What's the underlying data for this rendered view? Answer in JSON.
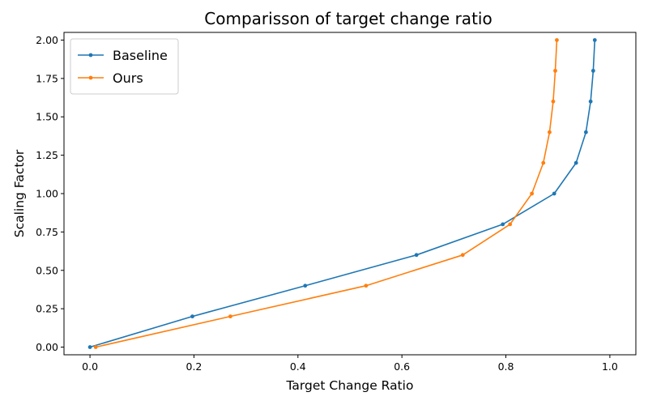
{
  "chart_data": {
    "type": "line",
    "title": "Comparisson of target change ratio",
    "xlabel": "Target Change Ratio",
    "ylabel": "Scaling Factor",
    "xlim": [
      -0.05,
      1.05
    ],
    "ylim": [
      -0.05,
      2.05
    ],
    "xticks": [
      0.0,
      0.2,
      0.4,
      0.6,
      0.8,
      1.0
    ],
    "xtick_labels": [
      "0.0",
      "0.2",
      "0.4",
      "0.6",
      "0.8",
      "1.0"
    ],
    "yticks": [
      0.0,
      0.25,
      0.5,
      0.75,
      1.0,
      1.25,
      1.5,
      1.75,
      2.0
    ],
    "ytick_labels": [
      "0.00",
      "0.25",
      "0.50",
      "0.75",
      "1.00",
      "1.25",
      "1.50",
      "1.75",
      "2.00"
    ],
    "grid": false,
    "legend_position": "top-left",
    "series": [
      {
        "name": "Baseline",
        "color": "#1f77b4",
        "marker": "circle",
        "points": [
          {
            "x": 0.0,
            "y": 0.0
          },
          {
            "x": 0.197,
            "y": 0.2
          },
          {
            "x": 0.414,
            "y": 0.4
          },
          {
            "x": 0.628,
            "y": 0.6
          },
          {
            "x": 0.794,
            "y": 0.8
          },
          {
            "x": 0.893,
            "y": 1.0
          },
          {
            "x": 0.935,
            "y": 1.2
          },
          {
            "x": 0.954,
            "y": 1.4
          },
          {
            "x": 0.963,
            "y": 1.6
          },
          {
            "x": 0.968,
            "y": 1.8
          },
          {
            "x": 0.971,
            "y": 2.0
          }
        ]
      },
      {
        "name": "Ours",
        "color": "#ff7f0e",
        "marker": "circle",
        "points": [
          {
            "x": 0.011,
            "y": 0.0
          },
          {
            "x": 0.27,
            "y": 0.2
          },
          {
            "x": 0.531,
            "y": 0.4
          },
          {
            "x": 0.717,
            "y": 0.6
          },
          {
            "x": 0.808,
            "y": 0.8
          },
          {
            "x": 0.85,
            "y": 1.0
          },
          {
            "x": 0.872,
            "y": 1.2
          },
          {
            "x": 0.884,
            "y": 1.4
          },
          {
            "x": 0.891,
            "y": 1.6
          },
          {
            "x": 0.895,
            "y": 1.8
          },
          {
            "x": 0.898,
            "y": 2.0
          }
        ]
      }
    ]
  }
}
